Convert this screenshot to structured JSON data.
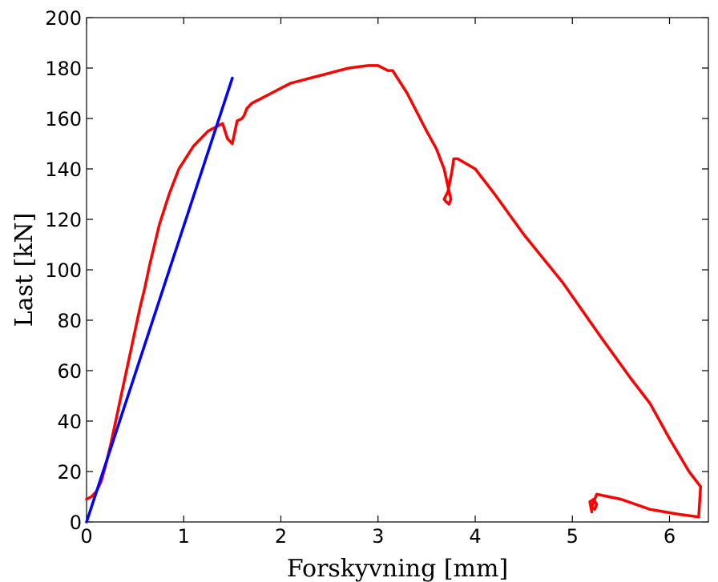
{
  "chart_data": {
    "type": "line",
    "xlabel": "Forskyvning [mm]",
    "ylabel": "Last [kN]",
    "xlim": [
      0,
      6.4
    ],
    "ylim": [
      0,
      200
    ],
    "x_ticks": [
      0,
      1,
      2,
      3,
      4,
      5,
      6
    ],
    "y_ticks": [
      0,
      20,
      40,
      60,
      80,
      100,
      120,
      140,
      160,
      180,
      200
    ],
    "grid": false,
    "legend": "none",
    "series": [
      {
        "color": "#ff0000",
        "x": [
          0,
          0.05,
          0.1,
          0.15,
          0.2,
          0.25,
          0.3,
          0.35,
          0.4,
          0.45,
          0.5,
          0.55,
          0.6,
          0.65,
          0.7,
          0.75,
          0.8,
          0.85,
          0.9,
          0.95,
          1.0,
          1.05,
          1.1,
          1.15,
          1.2,
          1.25,
          1.3,
          1.35,
          1.4,
          1.45,
          1.5,
          1.55,
          1.6,
          1.62,
          1.63,
          1.64,
          1.65,
          1.7,
          1.8,
          1.9,
          2.0,
          2.1,
          2.2,
          2.3,
          2.4,
          2.5,
          2.6,
          2.7,
          2.8,
          2.9,
          3.0,
          3.05,
          3.1,
          3.15,
          3.3,
          3.5,
          3.6,
          3.68,
          3.72,
          3.75,
          3.73,
          3.7,
          3.68,
          3.72,
          3.76,
          3.78,
          3.82,
          4.0,
          4.2,
          4.5,
          4.9,
          5.3,
          5.6,
          5.8,
          6.0,
          6.2,
          6.32,
          6.3,
          6.1,
          5.8,
          5.5,
          5.25,
          5.24,
          5.22,
          5.2,
          5.23,
          5.25,
          5.22,
          5.18,
          5.2
        ],
        "y": [
          9,
          10,
          12,
          16,
          23,
          31,
          40,
          49,
          58,
          67,
          76,
          85,
          93,
          102,
          110,
          118,
          124,
          130,
          135,
          140,
          143,
          146,
          149,
          151,
          153,
          155,
          156,
          157,
          158,
          152,
          150,
          159,
          160,
          161,
          162,
          163,
          164,
          166,
          168,
          170,
          172,
          174,
          175,
          176,
          177,
          178,
          179,
          180,
          180.5,
          181,
          181,
          180,
          179,
          179,
          170,
          155,
          148,
          140,
          133,
          128,
          126,
          127,
          128,
          131,
          139,
          144,
          144,
          140,
          130,
          114,
          95,
          73,
          57,
          47,
          33,
          20,
          14,
          2,
          3,
          5,
          9,
          11,
          10,
          8,
          6,
          5,
          7,
          9,
          8,
          4
        ]
      },
      {
        "color": "#0000ff",
        "x": [
          0,
          1.5
        ],
        "y": [
          0,
          176
        ]
      }
    ]
  }
}
